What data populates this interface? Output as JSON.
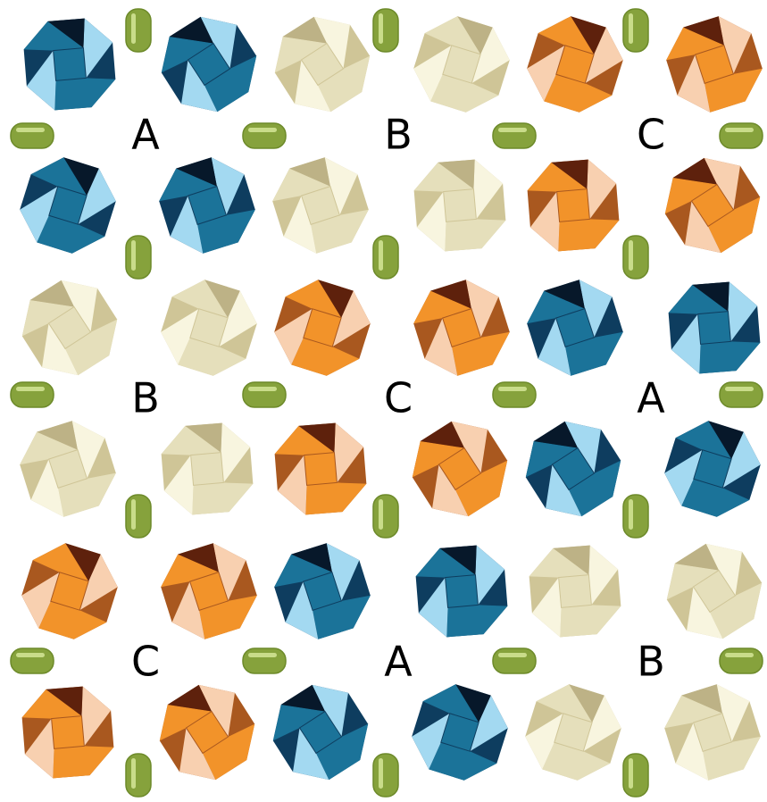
{
  "cells": [
    [
      "A",
      "B",
      "C"
    ],
    [
      "B",
      "C",
      "A"
    ],
    [
      "C",
      "A",
      "B"
    ]
  ]
}
